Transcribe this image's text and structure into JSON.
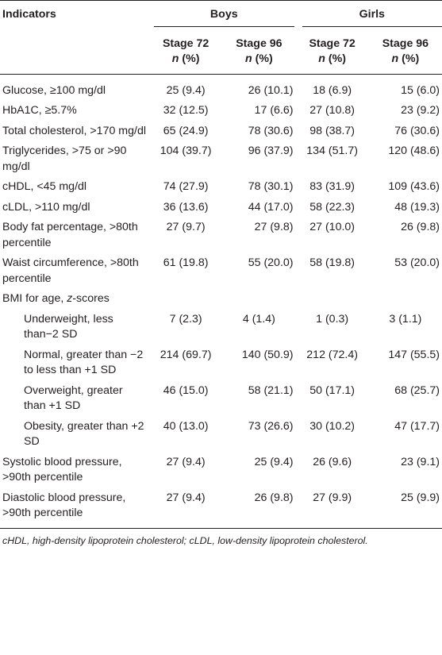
{
  "header": {
    "indicators": "Indicators",
    "boys": "Boys",
    "girls": "Girls",
    "stage72": "Stage 72",
    "stage96": "Stage 96",
    "n_pct_n": "n",
    "n_pct_rest": " (%)"
  },
  "rows": [
    {
      "label": "Glucose, ≥100 mg/dl",
      "b72": "25 (9.4)",
      "b96": "26 (10.1)",
      "g72": "18 (6.9)",
      "g96": "15 (6.0)"
    },
    {
      "label": "HbA1C, ≥5.7%",
      "b72": "32 (12.5)",
      "b96": "17 (6.6)",
      "g72": "27 (10.8)",
      "g96": "23 (9.2)"
    },
    {
      "label": "Total cholesterol, >170 mg/dl",
      "b72": "65 (24.9)",
      "b96": "78 (30.6)",
      "g72": "98 (38.7)",
      "g96": "76 (30.6)"
    },
    {
      "label": "Triglycerides, >75 or >90 mg/dl",
      "b72": "104 (39.7)",
      "b96": "96 (37.9)",
      "g72": "134 (51.7)",
      "g96": "120 (48.6)"
    },
    {
      "label": "cHDL, <45 mg/dl",
      "b72": "74 (27.9)",
      "b96": "78 (30.1)",
      "g72": "83 (31.9)",
      "g96": "109 (43.6)"
    },
    {
      "label": "cLDL, >110 mg/dl",
      "b72": "36 (13.6)",
      "b96": "44 (17.0)",
      "g72": "58 (22.3)",
      "g96": "48 (19.3)"
    },
    {
      "label": "Body fat percentage, >80th percentile",
      "b72": "27 (9.7)",
      "b96": "27 (9.8)",
      "g72": "27 (10.0)",
      "g96": "26 (9.8)"
    },
    {
      "label": "Waist circumference, >80th percentile",
      "b72": "61 (19.8)",
      "b96": "55 (20.0)",
      "g72": "58 (19.8)",
      "g96": "53 (20.0)"
    },
    {
      "label_pre": "BMI for age, ",
      "label_z": "z",
      "label_post": "-scores"
    },
    {
      "label": "Underweight, less than−2 SD",
      "b72": "7 (2.3)",
      "b96": "4 (1.4)",
      "g72": "1 (0.3)",
      "g96": "3 (1.1)"
    },
    {
      "label": "Normal, greater than −2 to less than +1 SD",
      "b72": "214 (69.7)",
      "b96": "140 (50.9)",
      "g72": "212 (72.4)",
      "g96": "147 (55.5)"
    },
    {
      "label": "Overweight, greater than +1 SD",
      "b72": "46 (15.0)",
      "b96": "58 (21.1)",
      "g72": "50 (17.1)",
      "g96": "68 (25.7)"
    },
    {
      "label": "Obesity, greater than +2 SD",
      "b72": "40 (13.0)",
      "b96": "73 (26.6)",
      "g72": "30 (10.2)",
      "g96": "47 (17.7)"
    },
    {
      "label": "Systolic blood pressure, >90th percentile",
      "b72": "27 (9.4)",
      "b96": "25 (9.4)",
      "g72": "26 (9.6)",
      "g96": "23 (9.1)"
    },
    {
      "label": "Diastolic blood pressure, >90th percentile",
      "b72": "27 (9.4)",
      "b96": "26 (9.8)",
      "g72": "27 (9.9)",
      "g96": "25 (9.9)"
    }
  ],
  "footnote": "cHDL, high-density lipoprotein cholesterol; cLDL, low-density lipoprotein cholesterol."
}
